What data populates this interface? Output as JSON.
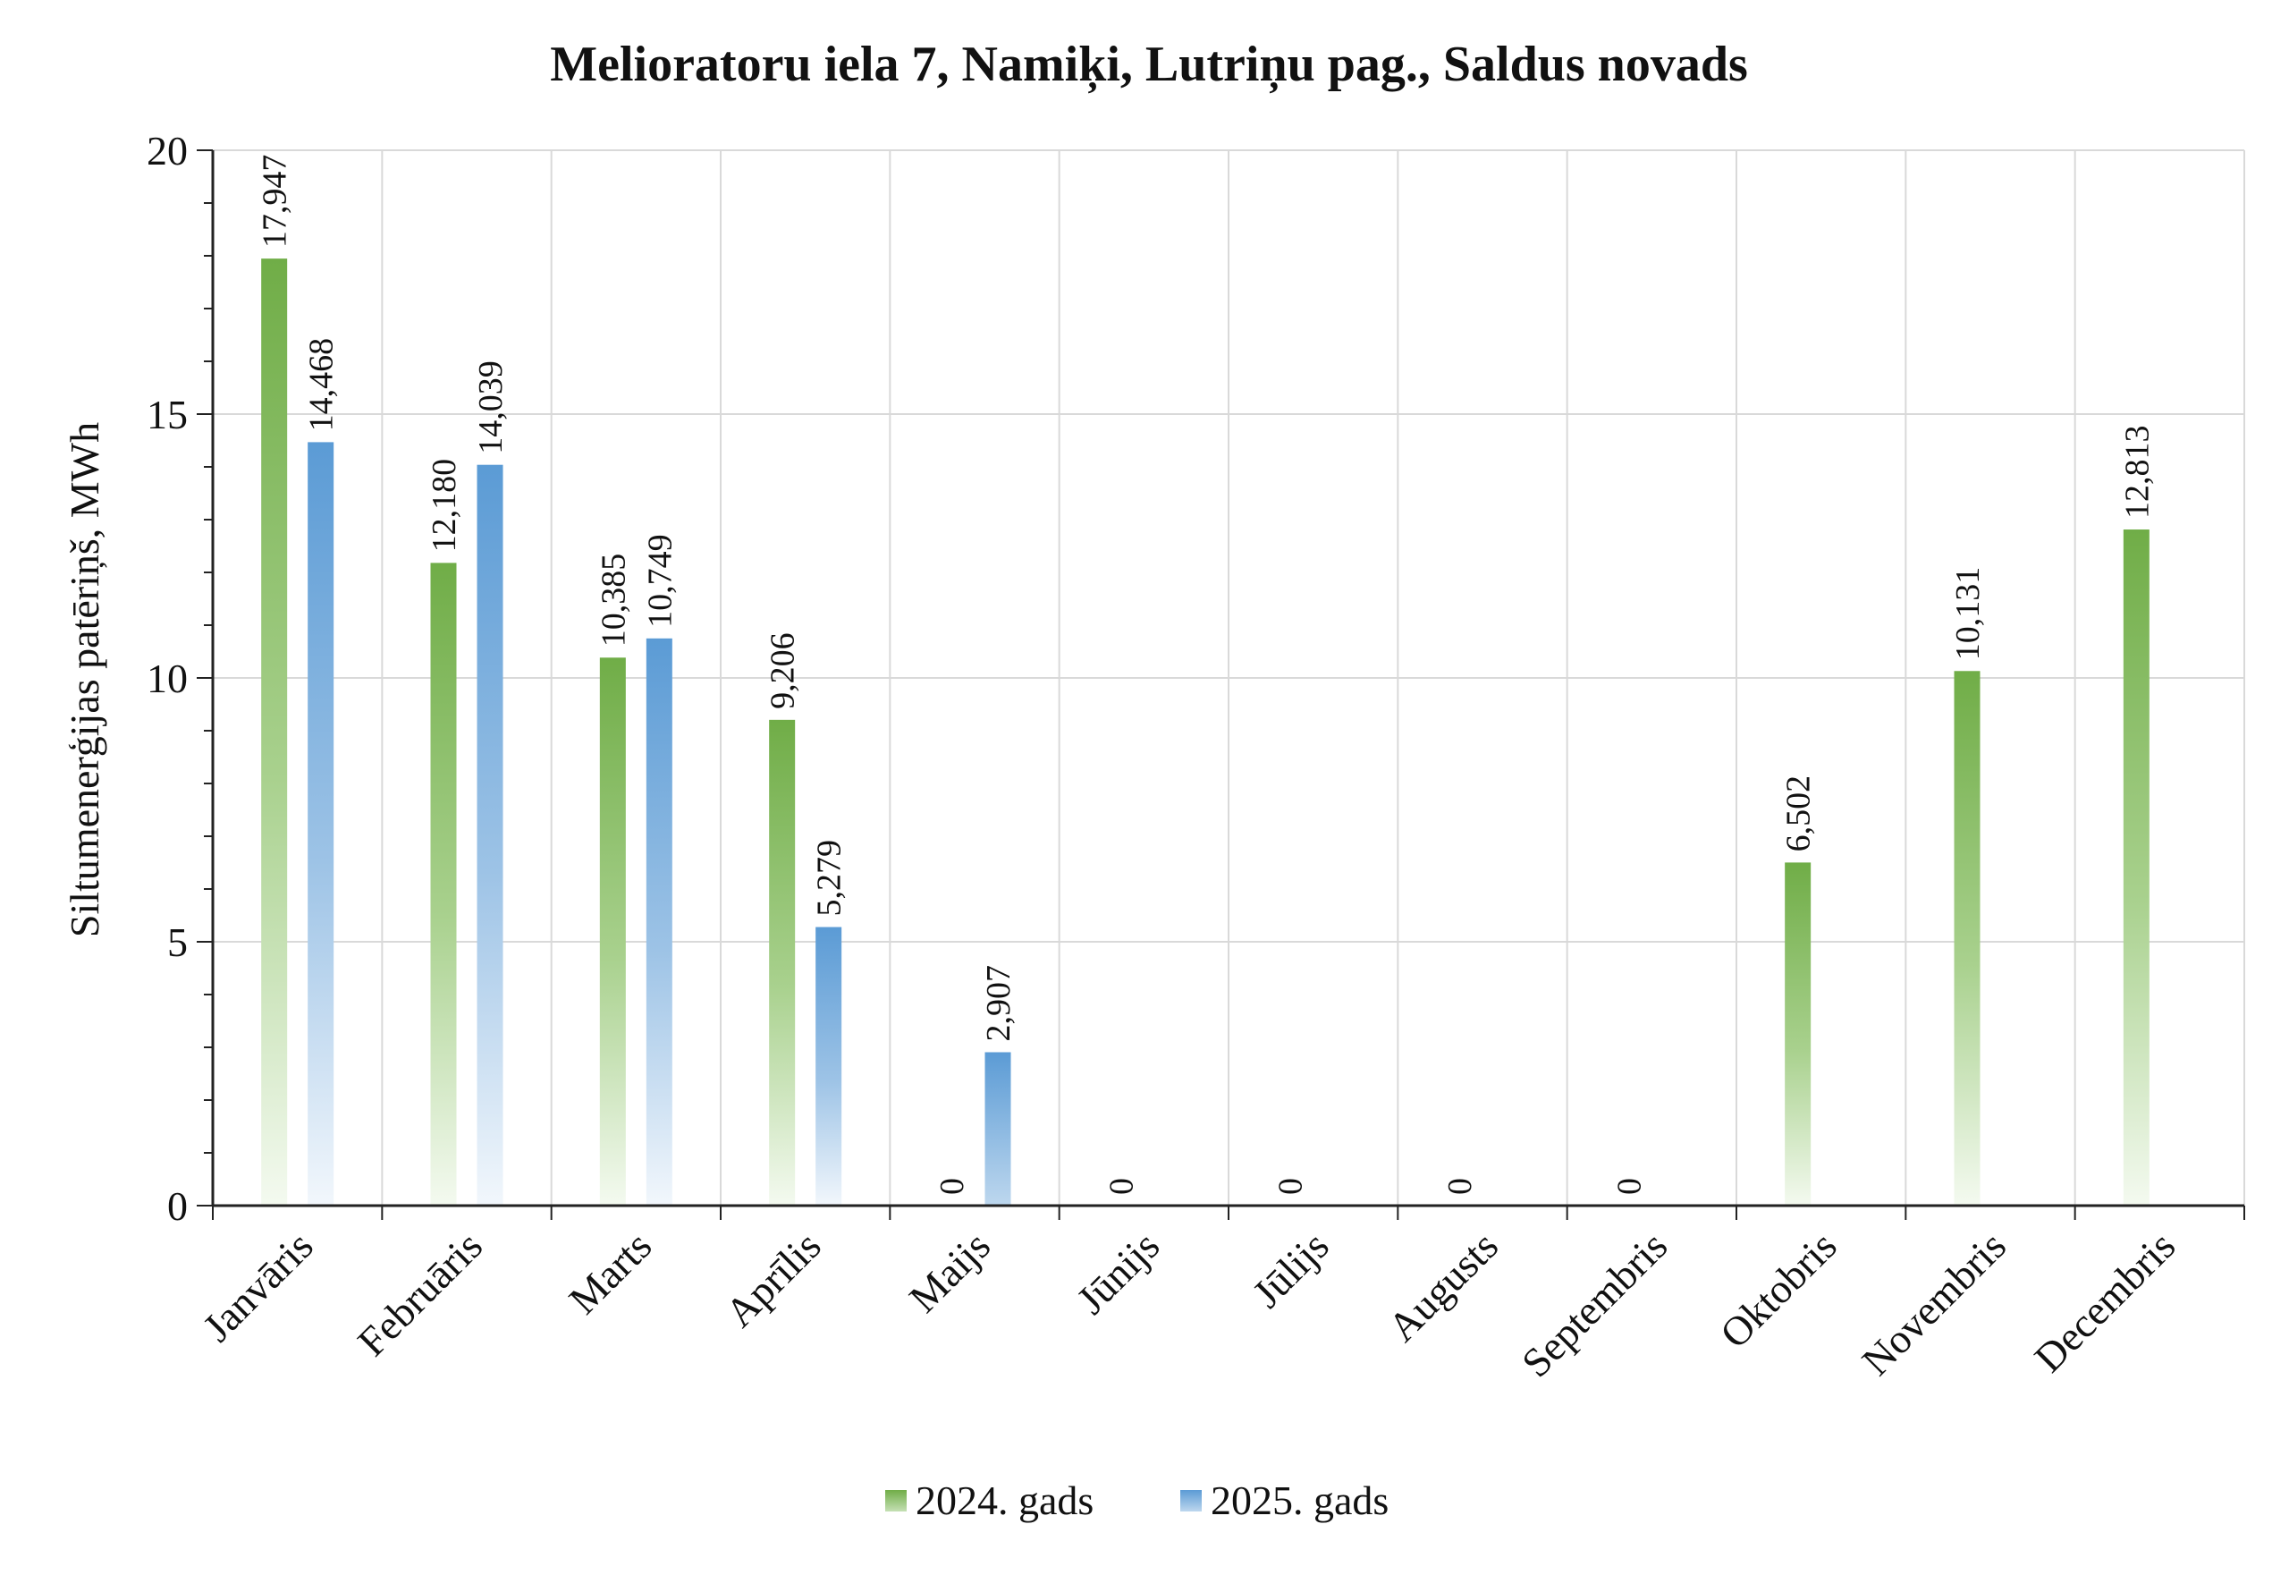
{
  "chart_data": {
    "type": "bar",
    "title": "Melioratoru iela 7, Namiķi, Lutriņu pag., Saldus novads",
    "xlabel": "",
    "ylabel": "Siltumenerģijas patēriņš, MWh",
    "ylim": [
      0,
      20
    ],
    "yticks": [
      0,
      5,
      10,
      15,
      20
    ],
    "grid": true,
    "legend_position": "bottom",
    "categories": [
      "Janvāris",
      "Februāris",
      "Marts",
      "Aprīlis",
      "Maijs",
      "Jūnijs",
      "Jūlijs",
      "Augusts",
      "Septembris",
      "Oktobris",
      "Novembris",
      "Decembris"
    ],
    "series": [
      {
        "name": "2024. gads",
        "color": "#70ad47",
        "values": [
          17.947,
          12.18,
          10.385,
          9.206,
          0,
          0,
          0,
          0,
          0,
          6.502,
          10.131,
          12.813
        ],
        "labels": [
          "17,947",
          "12,180",
          "10,385",
          "9,206",
          "0",
          "0",
          "0",
          "0",
          "0",
          "6,502",
          "10,131",
          "12,813"
        ]
      },
      {
        "name": "2025. gads",
        "color": "#5b9bd5",
        "values": [
          14.468,
          14.039,
          10.749,
          5.279,
          2.907,
          null,
          null,
          null,
          null,
          null,
          null,
          null
        ],
        "labels": [
          "14,468",
          "14,039",
          "10,749",
          "5,279",
          "2,907",
          null,
          null,
          null,
          null,
          null,
          null,
          null
        ]
      }
    ]
  }
}
